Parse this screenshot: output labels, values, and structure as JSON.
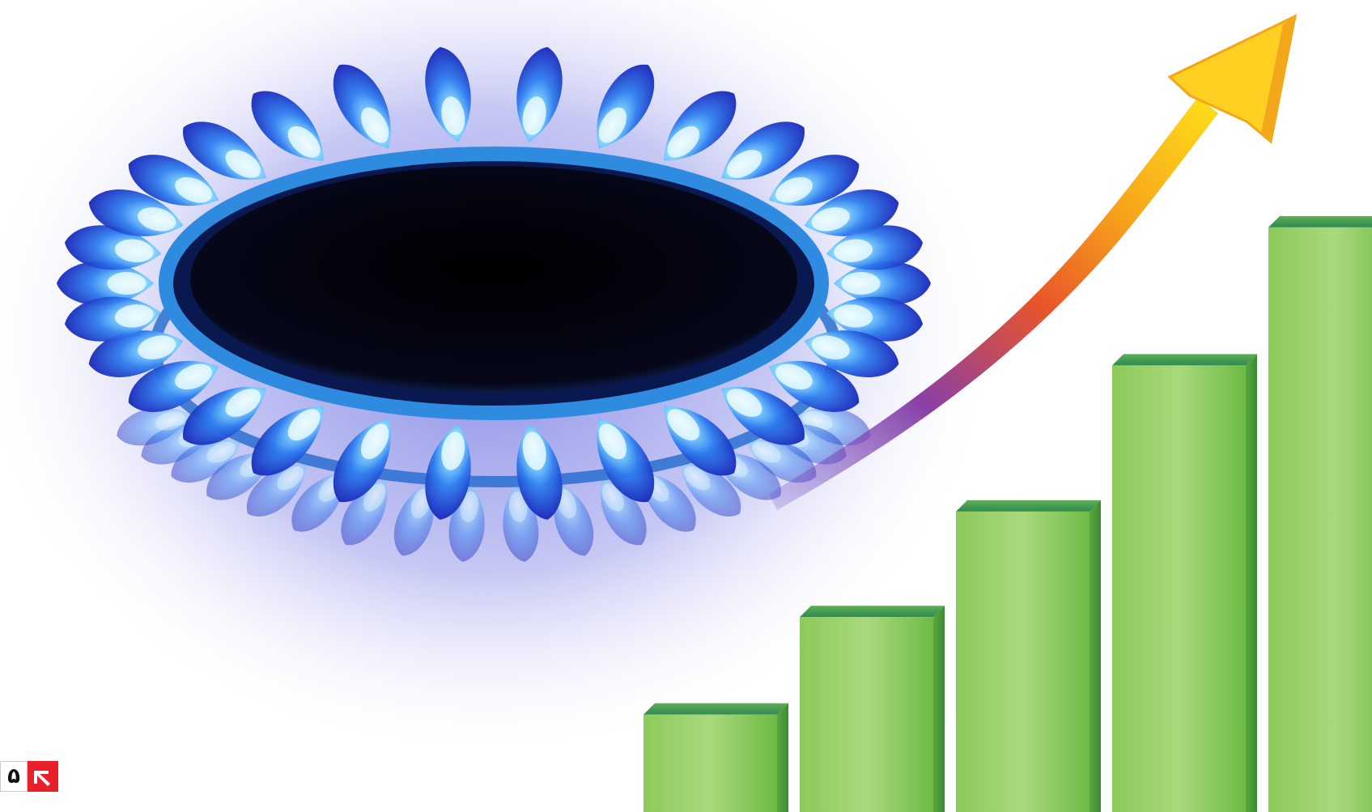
{
  "scene": {
    "description_colors": {
      "flame_outer": "#1a2fd6",
      "flame_inner": "#39a8f5",
      "flame_core": "#e8f8ff",
      "burner_hole": "#05050f",
      "burner_ring": "#2a7fd8",
      "arrow_yellow": "#ffd21a",
      "arrow_orange": "#f27a1a",
      "arrow_purple": "#7a3aa0",
      "bar_green": "#7cc24a",
      "bar_green_light": "#a7d67a",
      "bar_green_dark": "#3f9a4a"
    },
    "bars": [
      {
        "name": "bar-1",
        "level": 0.12
      },
      {
        "name": "bar-2",
        "level": 0.24
      },
      {
        "name": "bar-3",
        "level": 0.37
      },
      {
        "name": "bar-4",
        "level": 0.55
      },
      {
        "name": "bar-5",
        "level": 0.72
      }
    ]
  },
  "logo": {
    "number": "۵",
    "accent_color": "#e8202a"
  }
}
